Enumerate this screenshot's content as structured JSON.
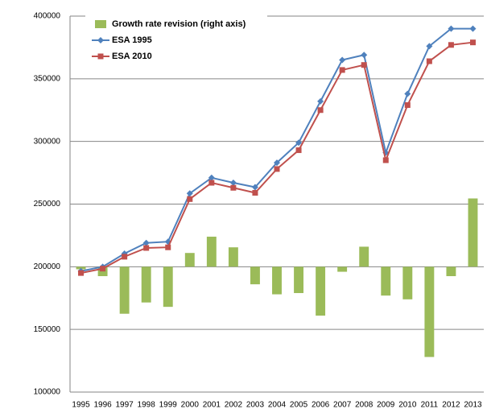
{
  "chart_data": {
    "type": "bar-line",
    "categories": [
      "1995",
      "1996",
      "1997",
      "1998",
      "1999",
      "2000",
      "2001",
      "2002",
      "2003",
      "2004",
      "2005",
      "2006",
      "2007",
      "2008",
      "2009",
      "2010",
      "2011",
      "2012",
      "2013"
    ],
    "series": [
      {
        "name": "Growth rate revision (right axis)",
        "type": "bar",
        "axis": "y2",
        "color": "#9bbb59",
        "values": [
          -0.02,
          -0.075,
          -0.375,
          -0.285,
          -0.32,
          0.11,
          0.24,
          0.155,
          -0.14,
          -0.22,
          -0.21,
          -0.39,
          -0.04,
          0.16,
          -0.23,
          -0.26,
          -0.72,
          -0.075,
          0.545
        ]
      },
      {
        "name": "ESA 1995",
        "type": "line",
        "marker": "diamond",
        "color": "#4f81bd",
        "values": [
          196500,
          200000,
          210500,
          219000,
          220000,
          258500,
          271000,
          267000,
          263500,
          283000,
          299000,
          332000,
          365000,
          369000,
          291000,
          338000,
          376000,
          390000,
          390000
        ]
      },
      {
        "name": "ESA 2010",
        "type": "line",
        "marker": "square",
        "color": "#c0504d",
        "values": [
          195000,
          198500,
          208000,
          215000,
          215500,
          254000,
          267000,
          263000,
          259000,
          278000,
          293000,
          325000,
          357000,
          361000,
          285000,
          329000,
          364000,
          377000,
          379000
        ]
      }
    ],
    "ylim": [
      100000,
      400000
    ],
    "yticks": [
      100000,
      150000,
      200000,
      250000,
      300000,
      350000,
      400000
    ],
    "y2lim": [
      -1,
      2
    ],
    "grid": true,
    "legend": "top-left"
  }
}
